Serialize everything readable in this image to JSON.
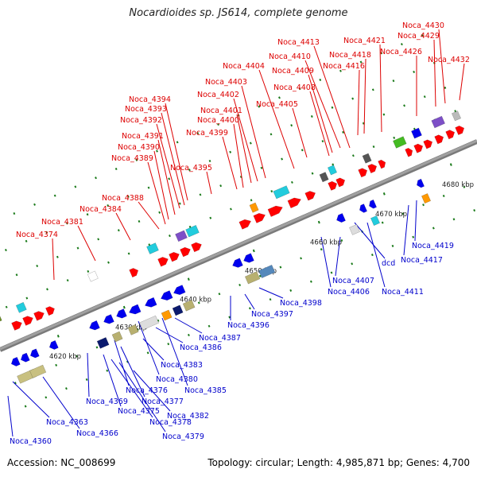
{
  "title": "Nocardioides sp. JS614, complete genome",
  "footer": {
    "accession": "Accession: NC_008699",
    "summary": "Topology: circular; Length: 4,985,871 bp; Genes: 4,700"
  },
  "colors": {
    "forward_strand": "#ff0000",
    "reverse_strand": "#0000ee",
    "forward_label": "#dd0000",
    "reverse_label": "#0000cc",
    "axis": "#a0a0a0",
    "tick": "#1a7a1a"
  },
  "axis_ticks": [
    {
      "label": "4620 kbp"
    },
    {
      "label": "4630 kbp"
    },
    {
      "label": "4640 kbp"
    },
    {
      "label": "4650 kbp"
    },
    {
      "label": "4660 kbp"
    },
    {
      "label": "4670 kbp"
    },
    {
      "label": "4680 kbp"
    }
  ],
  "forward_genes": [
    "Noca_4374",
    "Noca_4381",
    "Noca_4384",
    "Noca_4388",
    "Noca_4389",
    "Noca_4390",
    "Noca_4391",
    "Noca_4392",
    "Noca_4393",
    "Noca_4394",
    "Noca_4395",
    "Noca_4399",
    "Noca_4400",
    "Noca_4401",
    "Noca_4402",
    "Noca_4403",
    "Noca_4404",
    "Noca_4405",
    "Noca_4408",
    "Noca_4409",
    "Noca_4410",
    "Noca_4413",
    "Noca_4416",
    "Noca_4418",
    "Noca_4421",
    "Noca_4426",
    "Noca_4429",
    "Noca_4430",
    "Noca_4432"
  ],
  "reverse_genes": [
    "Noca_4360",
    "Noca_4363",
    "Noca_4366",
    "Noca_4369",
    "Noca_4375",
    "Noca_4376",
    "Noca_4377",
    "Noca_4378",
    "Noca_4379",
    "Noca_4380",
    "Noca_4382",
    "Noca_4383",
    "Noca_4385",
    "Noca_4386",
    "Noca_4387",
    "Noca_4396",
    "Noca_4397",
    "Noca_4398",
    "Noca_4406",
    "Noca_4407",
    "Noca_4411",
    "dcd",
    "Noca_4417",
    "Noca_4419"
  ]
}
